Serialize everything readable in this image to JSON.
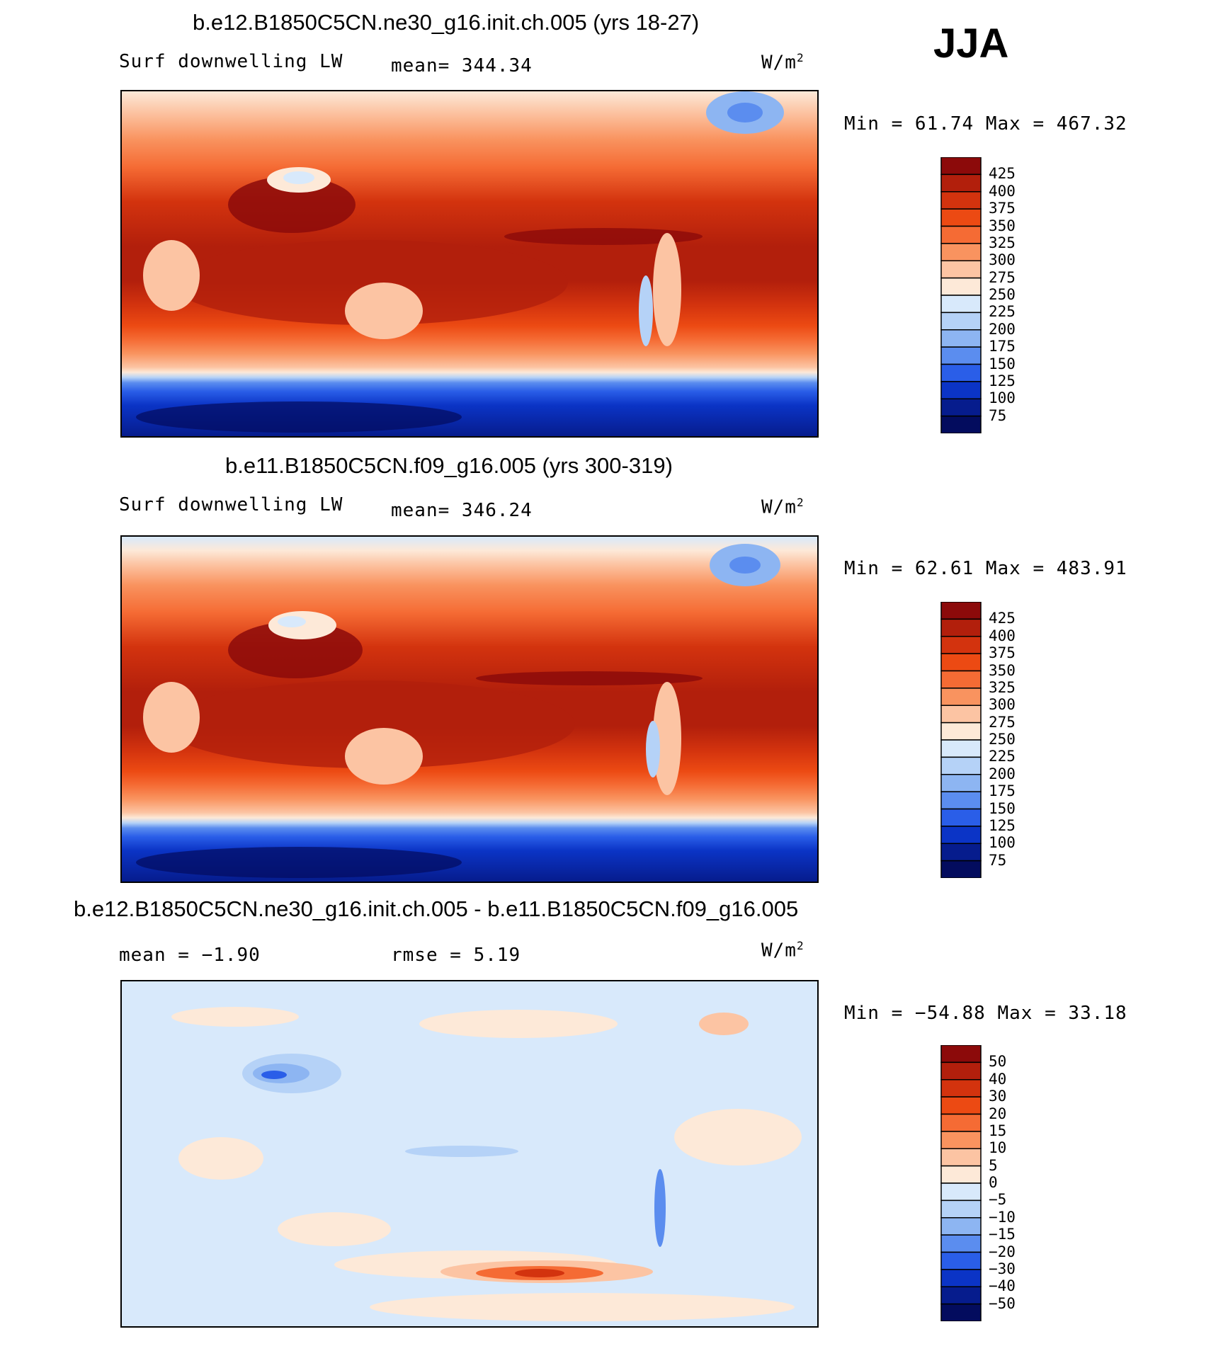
{
  "season": "JJA",
  "panels": [
    {
      "title": "b.e12.B1850C5CN.ne30_g16.init.ch.005 (yrs 18-27)",
      "left_label": "Surf downwelling LW",
      "mid_label": "mean= 344.34",
      "right_label": "W/m",
      "right_sup": "2",
      "minmax": "Min =   61.74 Max = 467.32",
      "cb_labels": [
        "425",
        "400",
        "375",
        "350",
        "325",
        "300",
        "275",
        "250",
        "225",
        "200",
        "175",
        "150",
        "125",
        "100",
        "75"
      ],
      "cb_colors": [
        "#8c0a0a",
        "#b21f0c",
        "#d3330e",
        "#ec4a13",
        "#f56b34",
        "#f9935f",
        "#fcc4a3",
        "#fde9d8",
        "#d8e9fb",
        "#b5d2f7",
        "#8db5f2",
        "#5b8def",
        "#2a5ee8",
        "#0b34c6",
        "#061c8d",
        "#030c5e"
      ],
      "stats": "Surf downwelling LW mean 344.34"
    },
    {
      "title": "b.e11.B1850C5CN.f09_g16.005 (yrs 300-319)",
      "left_label": "Surf downwelling LW",
      "mid_label": "mean= 346.24",
      "right_label": "W/m",
      "right_sup": "2",
      "minmax": "Min =   62.61 Max = 483.91",
      "cb_labels": [
        "425",
        "400",
        "375",
        "350",
        "325",
        "300",
        "275",
        "250",
        "225",
        "200",
        "175",
        "150",
        "125",
        "100",
        "75"
      ],
      "cb_colors": [
        "#8c0a0a",
        "#b21f0c",
        "#d3330e",
        "#ec4a13",
        "#f56b34",
        "#f9935f",
        "#fcc4a3",
        "#fde9d8",
        "#d8e9fb",
        "#b5d2f7",
        "#8db5f2",
        "#5b8def",
        "#2a5ee8",
        "#0b34c6",
        "#061c8d",
        "#030c5e"
      ],
      "stats": "Surf downwelling LW mean 346.24"
    },
    {
      "title": "b.e12.B1850C5CN.ne30_g16.init.ch.005 - b.e11.B1850C5CN.f09_g16.005",
      "left_label": "mean =   −1.90",
      "mid_label": "rmse =    5.19",
      "right_label": "W/m",
      "right_sup": "2",
      "minmax": "Min = −54.88 Max =   33.18",
      "cb_labels": [
        "50",
        "40",
        "30",
        "20",
        "15",
        "10",
        "5",
        "0",
        "−5",
        "−10",
        "−15",
        "−20",
        "−30",
        "−40",
        "−50"
      ],
      "cb_colors": [
        "#8c0a0a",
        "#b21f0c",
        "#d3330e",
        "#ec4a13",
        "#f56b34",
        "#f9935f",
        "#fcc4a3",
        "#fde9d8",
        "#d8e9fb",
        "#b5d2f7",
        "#8db5f2",
        "#5b8def",
        "#2a5ee8",
        "#0b34c6",
        "#061c8d",
        "#030c5e"
      ],
      "stats": "difference mean -1.90 rmse 5.19"
    }
  ]
}
